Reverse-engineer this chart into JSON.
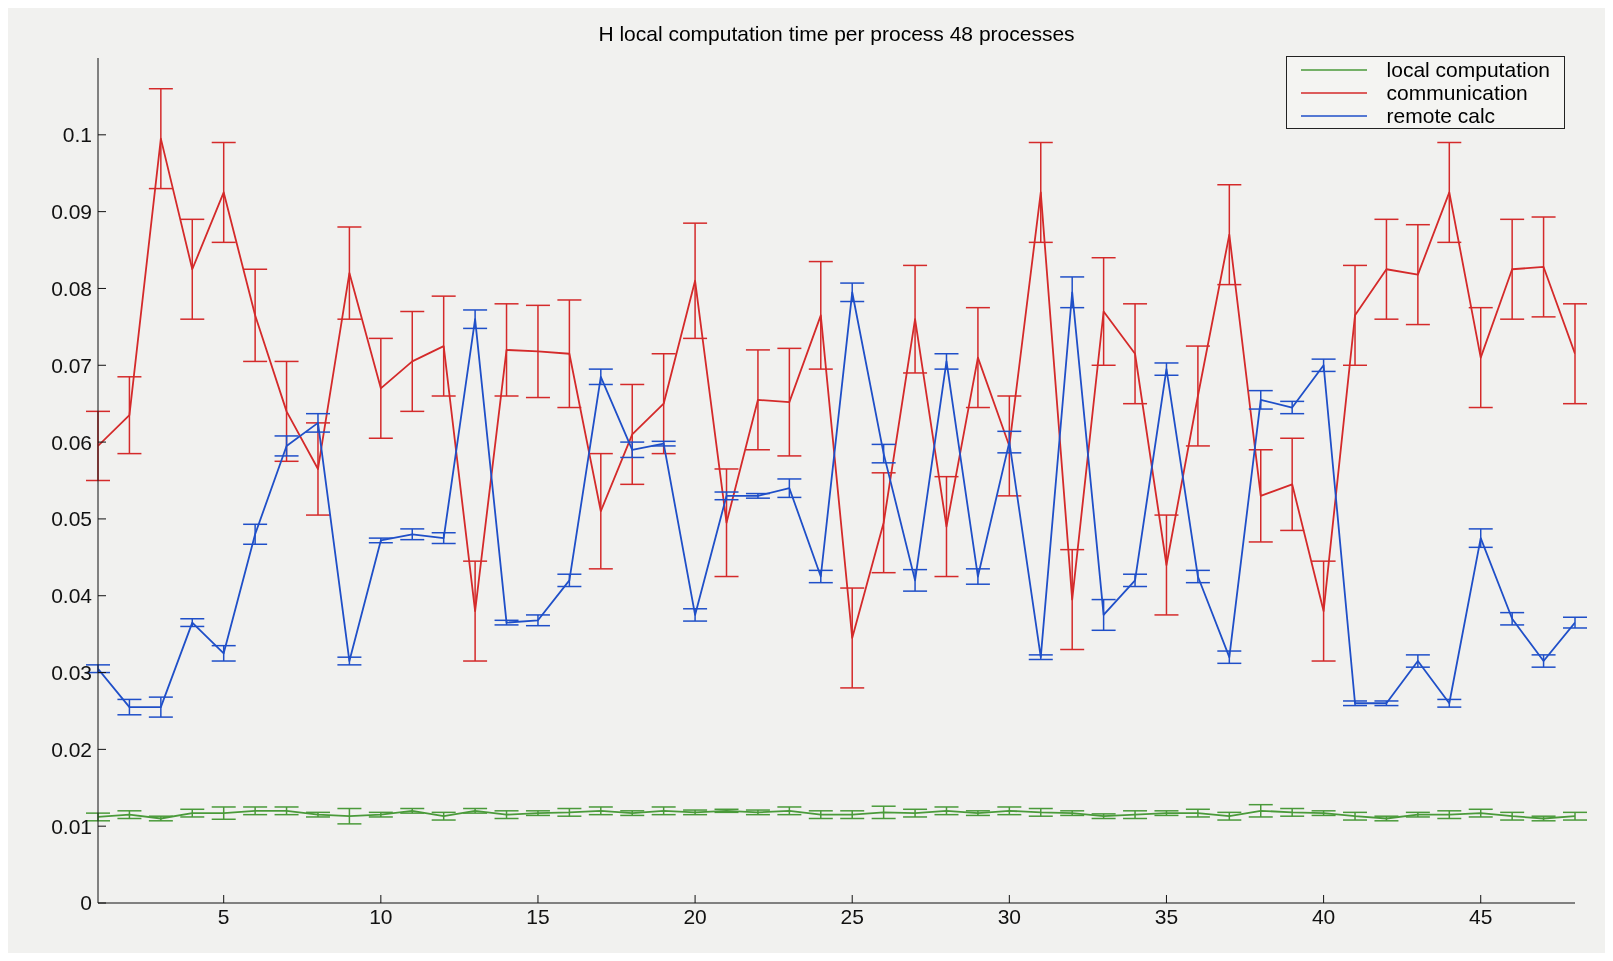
{
  "chart_data": {
    "type": "line",
    "title": "H local computation time per process 48 processes",
    "x": [
      1,
      2,
      3,
      4,
      5,
      6,
      7,
      8,
      9,
      10,
      11,
      12,
      13,
      14,
      15,
      16,
      17,
      18,
      19,
      20,
      21,
      22,
      23,
      24,
      25,
      26,
      27,
      28,
      29,
      30,
      31,
      32,
      33,
      34,
      35,
      36,
      37,
      38,
      39,
      40,
      41,
      42,
      43,
      44,
      45,
      46,
      47,
      48
    ],
    "xlim": [
      1,
      48
    ],
    "xticks": [
      5,
      10,
      15,
      20,
      25,
      30,
      35,
      40,
      45
    ],
    "ylim": [
      0,
      0.11
    ],
    "yticks": [
      0,
      0.01,
      0.02,
      0.03,
      0.04,
      0.05,
      0.06,
      0.07,
      0.08,
      0.09,
      0.1
    ],
    "grid": false,
    "legend": "top right",
    "marker": "none",
    "line_style": "solid",
    "series": [
      {
        "name": "local computation",
        "color": "#4a9a3a",
        "values": [
          0.0112,
          0.0115,
          0.011,
          0.0117,
          0.0117,
          0.012,
          0.012,
          0.0115,
          0.0113,
          0.0115,
          0.012,
          0.0113,
          0.012,
          0.0115,
          0.0117,
          0.0118,
          0.012,
          0.0117,
          0.012,
          0.0118,
          0.012,
          0.0118,
          0.012,
          0.0115,
          0.0115,
          0.0118,
          0.0117,
          0.012,
          0.0117,
          0.012,
          0.0118,
          0.0117,
          0.0113,
          0.0115,
          0.0117,
          0.0117,
          0.0113,
          0.012,
          0.0118,
          0.0117,
          0.0113,
          0.011,
          0.0115,
          0.0115,
          0.0117,
          0.0113,
          0.011,
          0.0113
        ],
        "errors": [
          0.0005,
          0.0005,
          0.0003,
          0.0005,
          0.0008,
          0.0005,
          0.0005,
          0.0003,
          0.001,
          0.0003,
          0.0003,
          0.0005,
          0.0003,
          0.0005,
          0.0003,
          0.0005,
          0.0005,
          0.0003,
          0.0005,
          0.0003,
          0.0002,
          0.0003,
          0.0005,
          0.0005,
          0.0005,
          0.0008,
          0.0005,
          0.0005,
          0.0003,
          0.0005,
          0.0005,
          0.0003,
          0.0003,
          0.0005,
          0.0003,
          0.0005,
          0.0005,
          0.0008,
          0.0005,
          0.0003,
          0.0005,
          0.0003,
          0.0003,
          0.0005,
          0.0005,
          0.0005,
          0.0003,
          0.0005
        ]
      },
      {
        "name": "communication",
        "color": "#d42a2a",
        "values": [
          0.0595,
          0.0635,
          0.0995,
          0.0825,
          0.0925,
          0.0765,
          0.064,
          0.0565,
          0.082,
          0.067,
          0.0705,
          0.0725,
          0.038,
          0.072,
          0.0718,
          0.0715,
          0.051,
          0.061,
          0.065,
          0.081,
          0.0495,
          0.0655,
          0.0652,
          0.0765,
          0.0345,
          0.0495,
          0.076,
          0.049,
          0.071,
          0.0595,
          0.0925,
          0.0395,
          0.077,
          0.0715,
          0.044,
          0.066,
          0.087,
          0.053,
          0.0545,
          0.038,
          0.0765,
          0.0825,
          0.0818,
          0.0925,
          0.071,
          0.0825,
          0.0828,
          0.0715
        ],
        "errors": [
          0.0045,
          0.005,
          0.0065,
          0.0065,
          0.0065,
          0.006,
          0.0065,
          0.006,
          0.006,
          0.0065,
          0.0065,
          0.0065,
          0.0065,
          0.006,
          0.006,
          0.007,
          0.0075,
          0.0065,
          0.0065,
          0.0075,
          0.007,
          0.0065,
          0.007,
          0.007,
          0.0065,
          0.0065,
          0.007,
          0.0065,
          0.0065,
          0.0065,
          0.0065,
          0.0065,
          0.007,
          0.0065,
          0.0065,
          0.0065,
          0.0065,
          0.006,
          0.006,
          0.0065,
          0.0065,
          0.0065,
          0.0065,
          0.0065,
          0.0065,
          0.0065,
          0.0065,
          0.0065
        ]
      },
      {
        "name": "remote calc",
        "color": "#1f4fc8",
        "values": [
          0.0305,
          0.0255,
          0.0255,
          0.0365,
          0.0325,
          0.048,
          0.0595,
          0.0625,
          0.0315,
          0.0472,
          0.048,
          0.0475,
          0.076,
          0.0365,
          0.0368,
          0.042,
          0.0685,
          0.059,
          0.0598,
          0.0375,
          0.053,
          0.053,
          0.054,
          0.0425,
          0.0795,
          0.0585,
          0.042,
          0.0705,
          0.0425,
          0.06,
          0.032,
          0.0795,
          0.0375,
          0.042,
          0.0695,
          0.0425,
          0.032,
          0.0655,
          0.0645,
          0.07,
          0.026,
          0.026,
          0.0315,
          0.026,
          0.0475,
          0.037,
          0.0315,
          0.0365
        ],
        "errors": [
          0.0005,
          0.001,
          0.0013,
          0.0005,
          0.001,
          0.0013,
          0.0013,
          0.0012,
          0.0005,
          0.0003,
          0.0007,
          0.0007,
          0.0012,
          0.0003,
          0.0007,
          0.0008,
          0.001,
          0.001,
          0.0003,
          0.0008,
          0.0005,
          0.0003,
          0.0012,
          0.0008,
          0.0012,
          0.0012,
          0.0014,
          0.001,
          0.001,
          0.0014,
          0.0003,
          0.002,
          0.002,
          0.0008,
          0.0008,
          0.0008,
          0.0008,
          0.0012,
          0.0008,
          0.0008,
          0.0003,
          0.0003,
          0.0008,
          0.0005,
          0.0012,
          0.0008,
          0.0008,
          0.0007
        ]
      }
    ]
  }
}
